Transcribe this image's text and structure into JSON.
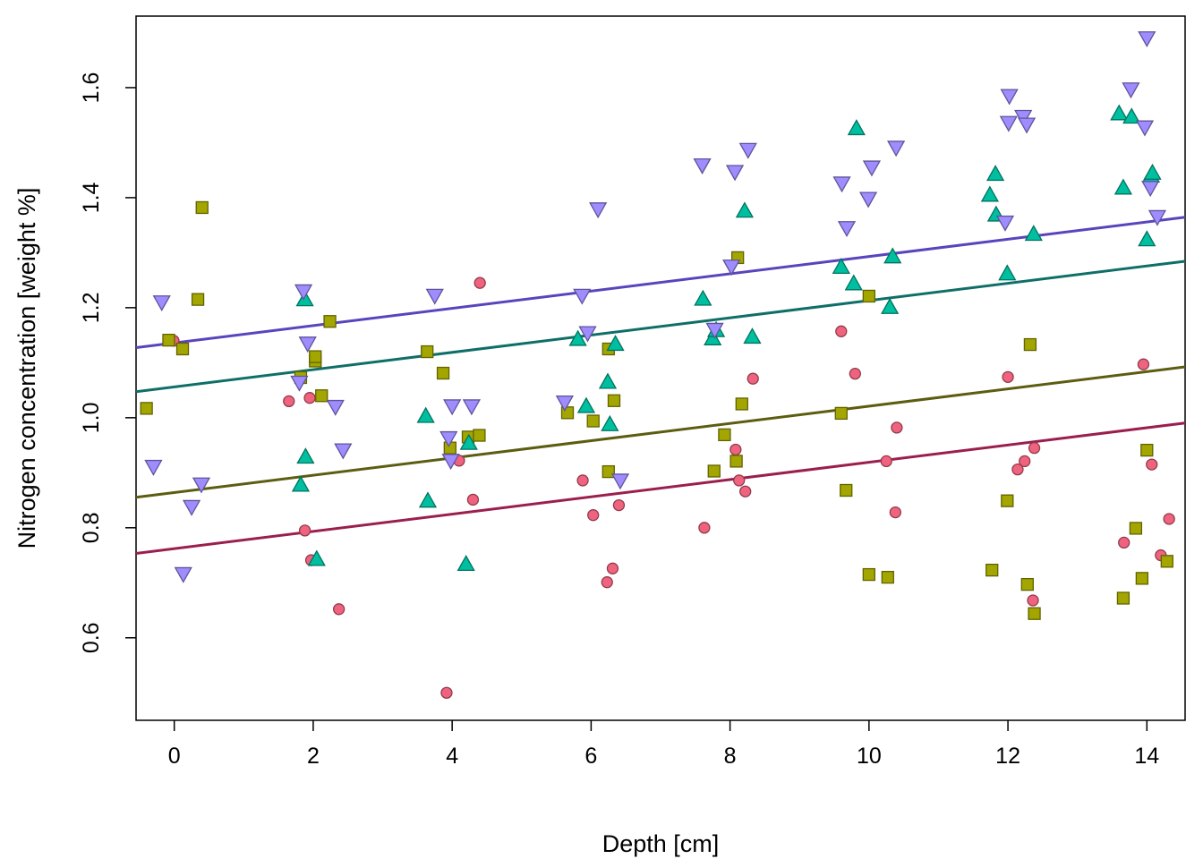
{
  "chart_data": {
    "type": "scatter",
    "title": "",
    "xlabel": "Depth [cm]",
    "ylabel": "Nitrogen concentration [weight %]",
    "xlim": [
      -0.55,
      14.55
    ],
    "ylim": [
      0.45,
      1.73
    ],
    "xticks": [
      0,
      2,
      4,
      6,
      8,
      10,
      12,
      14
    ],
    "yticks": [
      0.6,
      0.8,
      1.0,
      1.2,
      1.4,
      1.6
    ],
    "xtick_labels": [
      "0",
      "2",
      "4",
      "6",
      "8",
      "10",
      "12",
      "14"
    ],
    "ytick_labels": [
      "0.6",
      "0.8",
      "1.0",
      "1.2",
      "1.4",
      "1.6"
    ],
    "grid": false,
    "legend": "none",
    "series": [
      {
        "marker": "circle",
        "color": "#f0637f",
        "line_color": "#9b1f4d",
        "fit": {
          "intercept": 0.762,
          "slope": 0.0157
        },
        "x": [
          -0.01,
          1.65,
          1.88,
          1.95,
          1.97,
          2.37,
          3.92,
          4.1,
          4.3,
          4.4,
          5.88,
          6.03,
          6.23,
          6.31,
          6.4,
          7.63,
          8.08,
          8.13,
          8.22,
          8.33,
          9.6,
          9.8,
          10.25,
          10.38,
          10.4,
          12.0,
          12.14,
          12.24,
          12.36,
          12.38,
          13.67,
          13.95,
          14.07,
          14.2,
          14.32
        ],
        "y": [
          1.14,
          1.03,
          0.795,
          1.036,
          0.741,
          0.652,
          0.5,
          0.922,
          0.851,
          1.245,
          0.886,
          0.823,
          0.701,
          0.726,
          0.841,
          0.8,
          0.942,
          0.886,
          0.866,
          1.071,
          1.157,
          1.08,
          0.921,
          0.828,
          0.982,
          1.074,
          0.906,
          0.921,
          0.668,
          0.945,
          0.773,
          1.097,
          0.915,
          0.75,
          0.816
        ]
      },
      {
        "marker": "square",
        "color": "#a3a500",
        "line_color": "#5c5d10",
        "fit": {
          "intercept": 0.864,
          "slope": 0.0157
        },
        "x": [
          -0.4,
          -0.08,
          0.12,
          0.34,
          0.4,
          1.82,
          2.03,
          2.03,
          2.12,
          2.24,
          3.64,
          3.87,
          3.97,
          4.23,
          4.39,
          5.66,
          6.03,
          6.25,
          6.25,
          6.33,
          7.77,
          7.92,
          8.09,
          8.11,
          8.17,
          9.6,
          9.67,
          10.0,
          10.0,
          10.27,
          11.77,
          11.99,
          12.28,
          12.32,
          12.38,
          13.66,
          13.84,
          13.93,
          14.0,
          14.29
        ],
        "y": [
          1.017,
          1.141,
          1.125,
          1.215,
          1.382,
          1.073,
          1.103,
          1.111,
          1.04,
          1.175,
          1.12,
          1.081,
          0.945,
          0.965,
          0.968,
          1.009,
          0.994,
          0.902,
          1.125,
          1.031,
          0.903,
          0.969,
          0.921,
          1.291,
          1.025,
          1.008,
          0.868,
          0.715,
          1.221,
          0.71,
          0.723,
          0.849,
          0.697,
          1.133,
          0.644,
          0.672,
          0.799,
          0.708,
          0.941,
          0.739
        ]
      },
      {
        "marker": "triangle-up",
        "color": "#00bfa0",
        "line_color": "#0f6f68",
        "fit": {
          "intercept": 1.056,
          "slope": 0.0157
        },
        "x": [
          1.82,
          1.88,
          1.89,
          2.05,
          3.62,
          3.65,
          4.2,
          4.24,
          5.81,
          5.93,
          6.24,
          6.27,
          6.35,
          7.61,
          7.75,
          7.8,
          8.21,
          8.32,
          9.6,
          9.78,
          9.82,
          10.3,
          10.34,
          11.74,
          11.82,
          11.83,
          11.99,
          12.37,
          13.6,
          13.66,
          13.78,
          14.0,
          14.06,
          14.08
        ],
        "y": [
          0.878,
          1.215,
          0.929,
          0.743,
          1.003,
          0.849,
          0.734,
          0.954,
          1.143,
          1.021,
          1.065,
          0.988,
          1.134,
          1.216,
          1.144,
          1.159,
          1.376,
          1.147,
          1.274,
          1.244,
          1.526,
          1.201,
          1.293,
          1.405,
          1.443,
          1.369,
          1.262,
          1.334,
          1.553,
          1.418,
          1.547,
          1.324,
          1.44,
          1.445
        ]
      },
      {
        "marker": "triangle-down",
        "color": "#9f8cff",
        "line_color": "#5a44bd",
        "fit": {
          "intercept": 1.136,
          "slope": 0.0157
        },
        "x": [
          -0.3,
          -0.18,
          0.13,
          0.25,
          0.39,
          1.8,
          1.86,
          1.92,
          2.32,
          2.43,
          3.75,
          3.95,
          3.98,
          4.0,
          4.28,
          5.62,
          5.87,
          5.95,
          6.1,
          6.42,
          7.6,
          7.78,
          8.02,
          8.07,
          8.26,
          9.61,
          9.68,
          9.99,
          10.04,
          10.39,
          11.96,
          12.02,
          12.01,
          12.22,
          12.27,
          13.77,
          13.97,
          14.0,
          14.05,
          14.15
        ],
        "y": [
          0.911,
          1.21,
          0.716,
          0.838,
          0.879,
          1.064,
          1.23,
          1.135,
          1.02,
          0.941,
          1.222,
          0.963,
          0.922,
          1.021,
          1.021,
          1.028,
          1.222,
          1.154,
          1.379,
          0.886,
          1.459,
          1.16,
          1.275,
          1.447,
          1.487,
          1.426,
          1.345,
          1.398,
          1.455,
          1.491,
          1.355,
          1.585,
          1.536,
          1.547,
          1.533,
          1.597,
          1.528,
          1.69,
          1.418,
          1.365
        ]
      }
    ]
  }
}
